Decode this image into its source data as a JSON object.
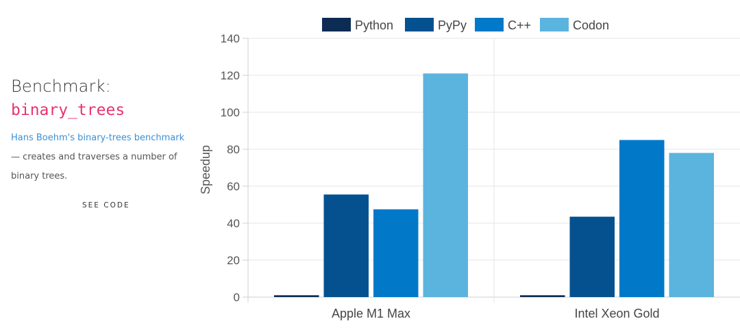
{
  "sidebar": {
    "heading": "Benchmark:",
    "benchmark_name": "binary_trees",
    "link_text": "Hans Boehm's binary-trees benchmark",
    "description": "— creates and traverses a number of binary trees.",
    "see_code_label": "SEE CODE"
  },
  "colors": {
    "python": "#0d2c54",
    "pypy": "#05518f",
    "cpp": "#0279c8",
    "codon": "#5bb4de",
    "accent": "#e8336e",
    "link": "#3a8fd6"
  },
  "chart_data": {
    "type": "bar",
    "title": "",
    "xlabel": "",
    "ylabel": "Speedup",
    "ylim": [
      0,
      140
    ],
    "yticks": [
      0,
      20,
      40,
      60,
      80,
      100,
      120,
      140
    ],
    "categories": [
      "Apple M1 Max",
      "Intel Xeon Gold"
    ],
    "series": [
      {
        "name": "Python",
        "color": "#0d2c54",
        "values": [
          1,
          1
        ]
      },
      {
        "name": "PyPy",
        "color": "#05518f",
        "values": [
          55.5,
          43.5
        ]
      },
      {
        "name": "C++",
        "color": "#0279c8",
        "values": [
          47.5,
          85
        ]
      },
      {
        "name": "Codon",
        "color": "#5bb4de",
        "values": [
          121,
          78
        ]
      }
    ],
    "legend_position": "top",
    "grid": true
  }
}
